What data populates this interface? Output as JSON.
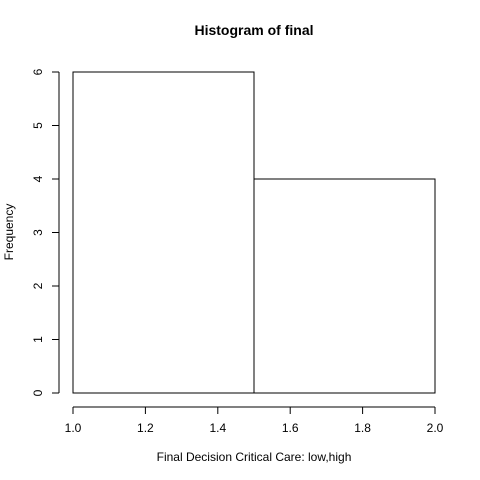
{
  "chart_data": {
    "type": "bar",
    "title": "Histogram of final",
    "xlabel": "Final Decision Critical Care: low,high",
    "ylabel": "Frequency",
    "bins": [
      {
        "start": 1.0,
        "end": 1.5,
        "value": 6
      },
      {
        "start": 1.5,
        "end": 2.0,
        "value": 4
      }
    ],
    "xlim": [
      1.0,
      2.0
    ],
    "ylim": [
      0,
      6
    ],
    "x_ticks": [
      "1.0",
      "1.2",
      "1.4",
      "1.6",
      "1.8",
      "2.0"
    ],
    "y_ticks": [
      "0",
      "1",
      "2",
      "3",
      "4",
      "5",
      "6"
    ],
    "grid": false
  }
}
